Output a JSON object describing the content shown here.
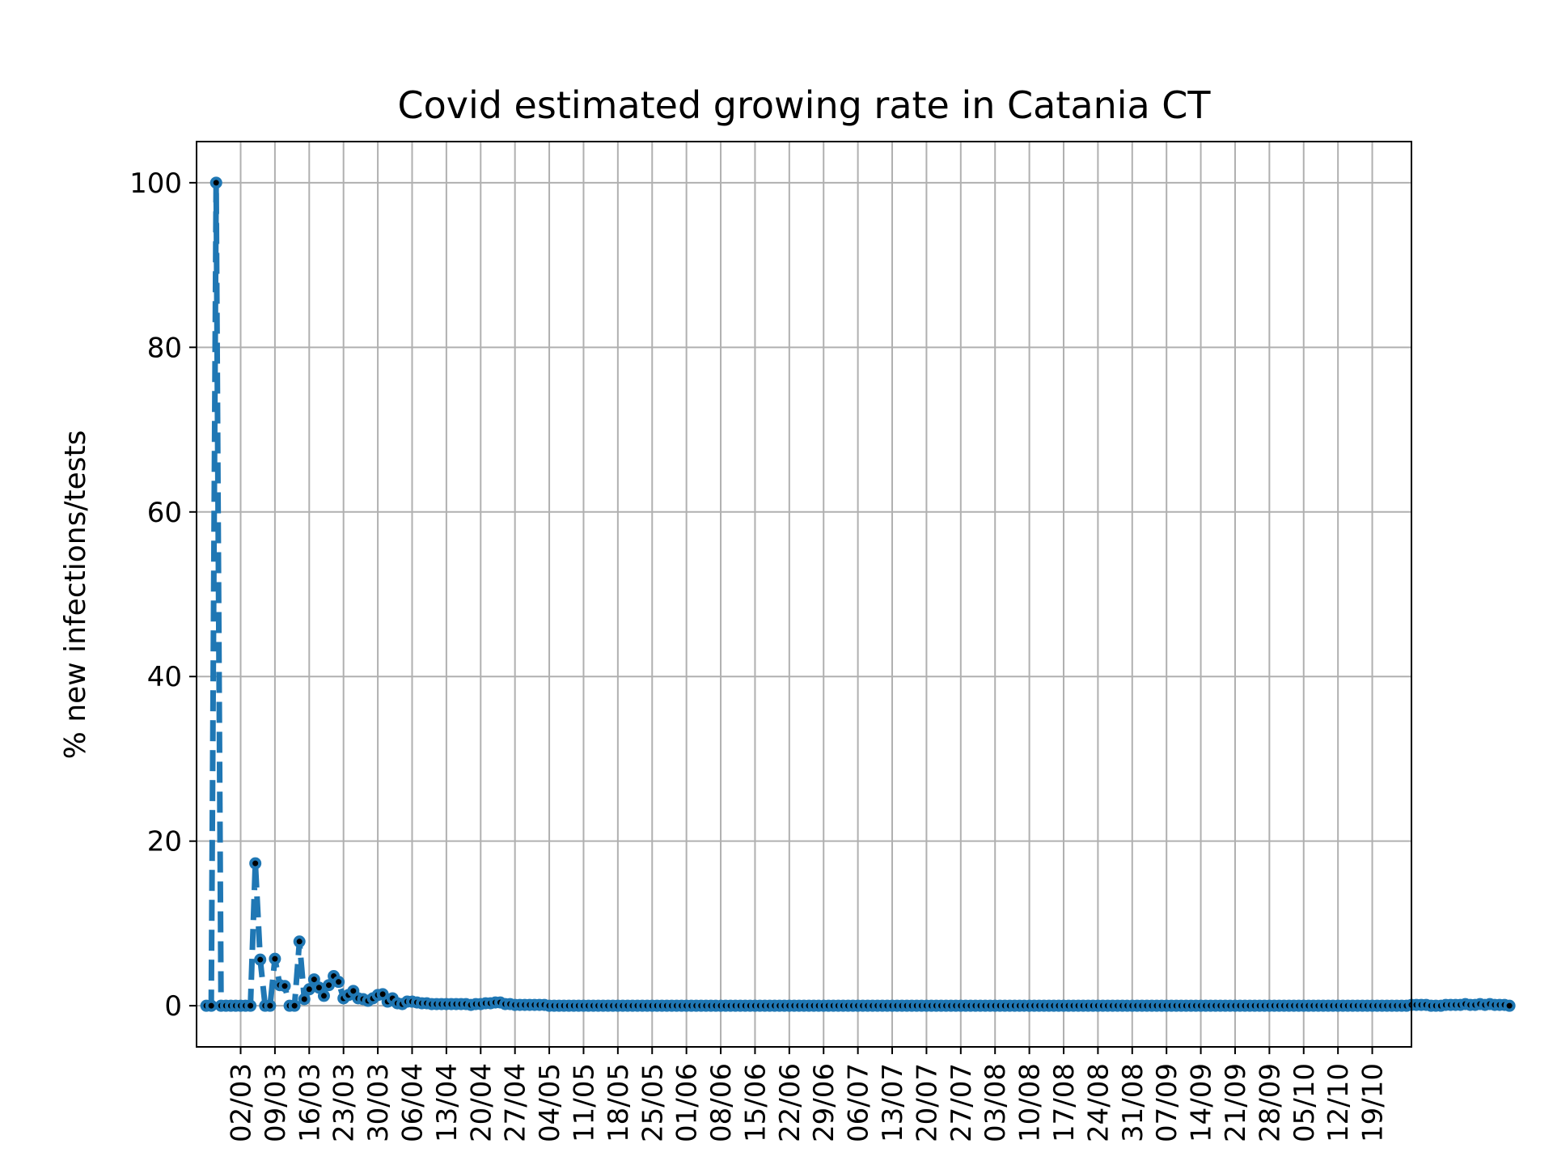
{
  "chart_data": {
    "type": "line",
    "title": "Covid estimated growing rate in Catania CT",
    "xlabel": "",
    "ylabel": "% new infections/tests",
    "xlim": [
      "2020-02-22",
      "2020-10-27"
    ],
    "ylim": [
      -5,
      105
    ],
    "y_ticks": [
      0,
      20,
      40,
      60,
      80,
      100
    ],
    "x_tick_dates": [
      "2020-03-02",
      "2020-03-09",
      "2020-03-16",
      "2020-03-23",
      "2020-03-30",
      "2020-04-06",
      "2020-04-13",
      "2020-04-20",
      "2020-04-27",
      "2020-05-04",
      "2020-05-11",
      "2020-05-18",
      "2020-05-25",
      "2020-06-01",
      "2020-06-08",
      "2020-06-15",
      "2020-06-22",
      "2020-06-29",
      "2020-07-06",
      "2020-07-13",
      "2020-07-20",
      "2020-07-27",
      "2020-08-03",
      "2020-08-10",
      "2020-08-17",
      "2020-08-24",
      "2020-08-31",
      "2020-09-07",
      "2020-09-14",
      "2020-09-21",
      "2020-09-28",
      "2020-10-05",
      "2020-10-12",
      "2020-10-19"
    ],
    "x_tick_labels": [
      "02/03",
      "09/03",
      "16/03",
      "23/03",
      "30/03",
      "06/04",
      "13/04",
      "20/04",
      "27/04",
      "04/05",
      "11/05",
      "18/05",
      "25/05",
      "01/06",
      "08/06",
      "15/06",
      "22/06",
      "29/06",
      "06/07",
      "13/07",
      "20/07",
      "27/07",
      "03/08",
      "10/08",
      "17/08",
      "24/08",
      "31/08",
      "07/09",
      "14/09",
      "21/09",
      "28/09",
      "05/10",
      "12/10",
      "19/10"
    ],
    "grid": true,
    "line_color": "#1f77b4",
    "line_style": "dashed",
    "marker_edge_color": "#1f77b4",
    "marker_face_color": "#000000",
    "series": [
      {
        "start_date": "2020-02-24",
        "step_days": 1,
        "values": [
          0,
          0,
          100,
          0,
          0,
          0,
          0,
          0,
          0,
          0,
          17.3,
          5.6,
          0,
          0,
          5.7,
          2.5,
          2.4,
          0,
          0,
          7.8,
          0.8,
          2.0,
          3.2,
          2.2,
          1.2,
          2.5,
          3.6,
          2.9,
          0.9,
          1.3,
          1.8,
          0.9,
          0.8,
          0.6,
          0.9,
          1.3,
          1.4,
          0.5,
          0.9,
          0.3,
          0.2,
          0.5,
          0.5,
          0.4,
          0.3,
          0.3,
          0.2,
          0.2,
          0.2,
          0.2,
          0.2,
          0.2,
          0.2,
          0.2,
          0.1,
          0.2,
          0.2,
          0.3,
          0.3,
          0.4,
          0.4,
          0.2,
          0.2,
          0.1,
          0.1,
          0.1,
          0.1,
          0.1,
          0.1,
          0.1,
          0,
          0,
          0,
          0,
          0,
          0,
          0,
          0,
          0,
          0,
          0,
          0,
          0,
          0,
          0,
          0,
          0,
          0,
          0,
          0,
          0,
          0,
          0,
          0,
          0,
          0,
          0,
          0,
          0,
          0,
          0,
          0,
          0,
          0,
          0,
          0,
          0,
          0,
          0,
          0,
          0,
          0,
          0,
          0,
          0,
          0,
          0,
          0,
          0,
          0,
          0,
          0,
          0,
          0,
          0,
          0,
          0,
          0,
          0,
          0,
          0,
          0,
          0,
          0,
          0,
          0,
          0,
          0,
          0,
          0,
          0,
          0,
          0,
          0,
          0,
          0,
          0,
          0,
          0,
          0,
          0,
          0,
          0,
          0,
          0,
          0,
          0,
          0,
          0,
          0,
          0,
          0,
          0,
          0,
          0,
          0,
          0,
          0,
          0,
          0,
          0,
          0,
          0,
          0,
          0,
          0,
          0,
          0,
          0,
          0,
          0,
          0,
          0,
          0,
          0,
          0,
          0,
          0,
          0,
          0,
          0,
          0,
          0,
          0,
          0,
          0,
          0,
          0,
          0,
          0,
          0,
          0,
          0,
          0,
          0,
          0,
          0,
          0,
          0,
          0,
          0,
          0,
          0,
          0,
          0,
          0,
          0,
          0,
          0,
          0,
          0,
          0,
          0,
          0,
          0,
          0,
          0,
          0,
          0,
          0,
          0,
          0,
          0,
          0,
          0,
          0,
          0,
          0,
          0,
          0,
          0,
          0,
          0,
          0,
          0,
          0,
          0.1,
          0.1,
          0.1,
          0.1,
          0,
          0,
          0,
          0.1,
          0.1,
          0.1,
          0.1,
          0.2,
          0.1,
          0.1,
          0.2,
          0.1,
          0.2,
          0.1,
          0.1,
          0.1,
          0
        ]
      }
    ]
  }
}
